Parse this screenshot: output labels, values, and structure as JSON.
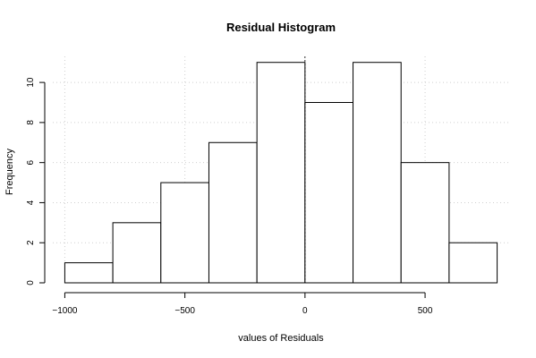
{
  "chart_data": {
    "type": "bar",
    "title": "Residual Histogram",
    "xlabel": "values of Residuals",
    "ylabel": "Frequency",
    "bins": [
      {
        "from": -1000,
        "to": -800,
        "count": 1
      },
      {
        "from": -800,
        "to": -600,
        "count": 3
      },
      {
        "from": -600,
        "to": -400,
        "count": 5
      },
      {
        "from": -400,
        "to": -200,
        "count": 7
      },
      {
        "from": -200,
        "to": 0,
        "count": 11
      },
      {
        "from": 0,
        "to": 200,
        "count": 9
      },
      {
        "from": 200,
        "to": 400,
        "count": 11
      },
      {
        "from": 400,
        "to": 600,
        "count": 6
      },
      {
        "from": 600,
        "to": 800,
        "count": 2
      }
    ],
    "xlim": [
      -1050,
      850
    ],
    "ylim": [
      0,
      11.3
    ],
    "x_ticks": [
      -1000,
      -500,
      0,
      500
    ],
    "x_tick_labels": [
      "−1000",
      "−500",
      "0",
      "500"
    ],
    "y_ticks": [
      0,
      2,
      4,
      6,
      8,
      10
    ],
    "y_tick_labels": [
      "0",
      "2",
      "4",
      "6",
      "8",
      "10"
    ],
    "grid": true,
    "reference_line_x": 0
  }
}
